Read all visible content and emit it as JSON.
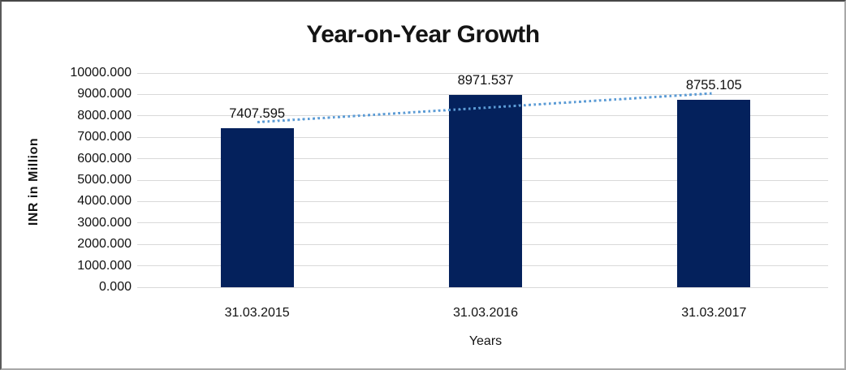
{
  "chart_data": {
    "type": "bar",
    "title": "Year-on-Year Growth",
    "xlabel": "Years",
    "ylabel": "INR in Million",
    "categories": [
      "31.03.2015",
      "31.03.2016",
      "31.03.2017"
    ],
    "values": [
      7407.595,
      8971.537,
      8755.105
    ],
    "value_labels": [
      "7407.595",
      "8971.537",
      "8755.105"
    ],
    "ylim": [
      0,
      10000
    ],
    "ytick_step": 1000,
    "ytick_labels": [
      "10000.000",
      "9000.000",
      "8000.000",
      "7000.000",
      "6000.000",
      "5000.000",
      "4000.000",
      "3000.000",
      "2000.000",
      "1000.000",
      "0.000"
    ],
    "grid": "horizontal",
    "legend": "none",
    "bar_color": "#04215C",
    "trendline": {
      "type": "linear",
      "style": "dotted",
      "color": "#5B9BD5",
      "start_value": 7704,
      "end_value": 9052
    }
  },
  "colors": {
    "gridline": "#D9D9D9",
    "text": "#141414",
    "background": "#FFFFFF"
  }
}
